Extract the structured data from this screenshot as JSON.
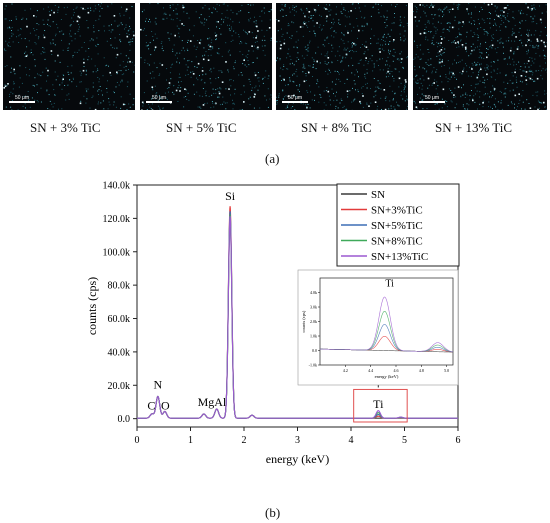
{
  "micrographs": {
    "scale_label": "50 μm",
    "items": [
      {
        "caption": "SN + 3% TiC",
        "density": 0.25
      },
      {
        "caption": "SN + 5% TiC",
        "density": 0.3
      },
      {
        "caption": "SN + 8% TiC",
        "density": 0.45
      },
      {
        "caption": "SN + 13% TiC",
        "density": 0.6
      }
    ]
  },
  "panel_labels": {
    "a": "(a)",
    "b": "(b)"
  },
  "chart_data": {
    "type": "line",
    "xlabel": "energy (keV)",
    "ylabel": "counts (cps)",
    "xlim": [
      0,
      6
    ],
    "ylim": [
      -5000,
      140000
    ],
    "xticks": [
      "0",
      "1",
      "2",
      "3",
      "4",
      "5",
      "6"
    ],
    "yticks": [
      "0.0",
      "20.0k",
      "40.0k",
      "60.0k",
      "80.0k",
      "100.0k",
      "120.0k",
      "140.0k"
    ],
    "peak_labels": [
      {
        "text": "C",
        "x": 0.27,
        "y": 5500
      },
      {
        "text": "N",
        "x": 0.39,
        "y": 18000
      },
      {
        "text": "O",
        "x": 0.53,
        "y": 5500
      },
      {
        "text": "MgAl",
        "x": 1.4,
        "y": 7500
      },
      {
        "text": "Si",
        "x": 1.74,
        "y": 131000
      },
      {
        "text": "Ti",
        "x": 4.51,
        "y": 6500
      }
    ],
    "series": [
      {
        "name": "SN",
        "color": "#3a3a3a",
        "ti_peak": 0,
        "si_peak": 120000
      },
      {
        "name": "SN+3%TiC",
        "color": "#e23b3b",
        "ti_peak": 1200,
        "si_peak": 127000
      },
      {
        "name": "SN+5%TiC",
        "color": "#3d6fb5",
        "ti_peak": 2200,
        "si_peak": 124000
      },
      {
        "name": "SN+8%TiC",
        "color": "#3fa95a",
        "ti_peak": 3300,
        "si_peak": 122000
      },
      {
        "name": "SN+13%TiC",
        "color": "#9b59d0",
        "ti_peak": 4500,
        "si_peak": 121000
      }
    ],
    "common_peaks": [
      {
        "x": 0.28,
        "h": 2500
      },
      {
        "x": 0.39,
        "h": 13000
      },
      {
        "x": 0.52,
        "h": 4000
      },
      {
        "x": 1.25,
        "h": 2500
      },
      {
        "x": 1.49,
        "h": 5500
      },
      {
        "x": 2.15,
        "h": 1800
      }
    ],
    "highlight_box": {
      "x": [
        4.05,
        5.05
      ],
      "y": [
        -2000,
        17500
      ],
      "color": "#e05050"
    },
    "inset": {
      "title": "Ti",
      "xlabel": "energy (keV)",
      "ylabel": "counts (cps)",
      "xlim": [
        4.0,
        5.05
      ],
      "ylim": [
        -1000,
        5000
      ],
      "xticks": [
        "4.2",
        "4.4",
        "4.6",
        "4.8",
        "5.0"
      ],
      "yticks": [
        "-1.0k",
        "0.0",
        "1.0k",
        "2.0k",
        "3.0k",
        "4.0k"
      ]
    }
  }
}
